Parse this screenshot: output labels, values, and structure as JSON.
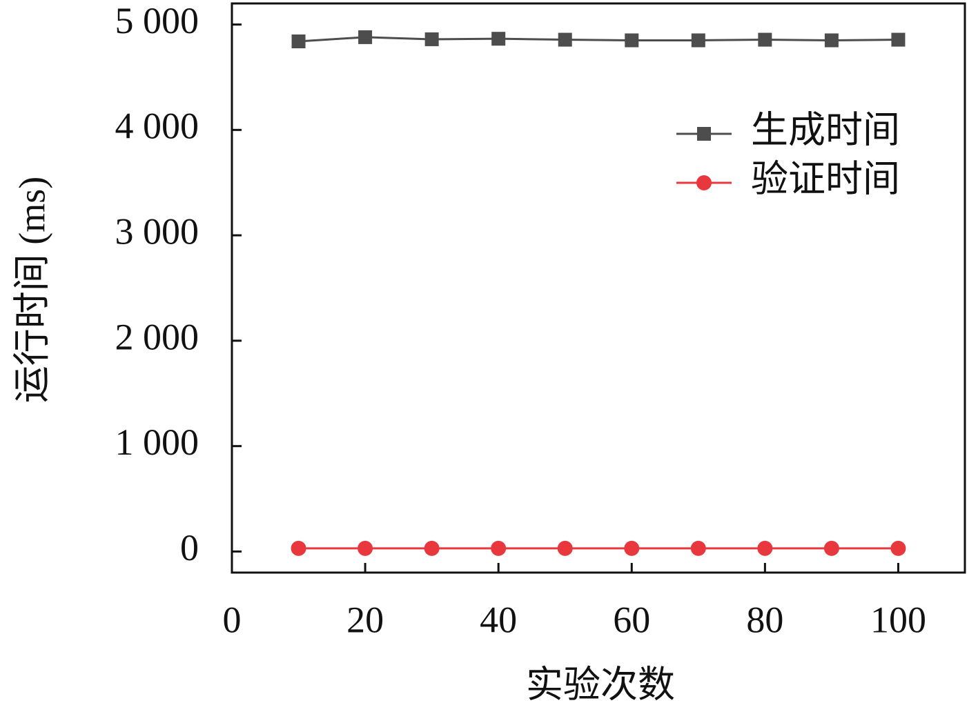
{
  "chart_data": {
    "type": "line",
    "x_label": "实验次数",
    "y_label": "运行时间 (ms)",
    "x": [
      10,
      20,
      30,
      40,
      50,
      60,
      70,
      80,
      90,
      100
    ],
    "series": [
      {
        "name": "生成时间",
        "color": "#4d4d4d",
        "marker": "square",
        "values": [
          4840,
          4880,
          4860,
          4865,
          4856,
          4850,
          4850,
          4856,
          4850,
          4856
        ]
      },
      {
        "name": "验证时间",
        "color": "#e8383d",
        "marker": "circle",
        "values": [
          30,
          30,
          30,
          30,
          30,
          30,
          30,
          30,
          30,
          30
        ]
      }
    ],
    "xlim": [
      0,
      110
    ],
    "xticks": [
      0,
      20,
      40,
      60,
      80,
      100
    ],
    "ylim": [
      -200,
      5200
    ],
    "yticks": [
      0,
      {
        "value": 1000,
        "label": "1 000"
      },
      {
        "value": 2000,
        "label": "2 000"
      },
      {
        "value": 3000,
        "label": "3 000"
      },
      {
        "value": 4000,
        "label": "4 000"
      },
      {
        "value": 5000,
        "label": "5 000"
      }
    ],
    "legend": "upper right",
    "grid": false
  }
}
